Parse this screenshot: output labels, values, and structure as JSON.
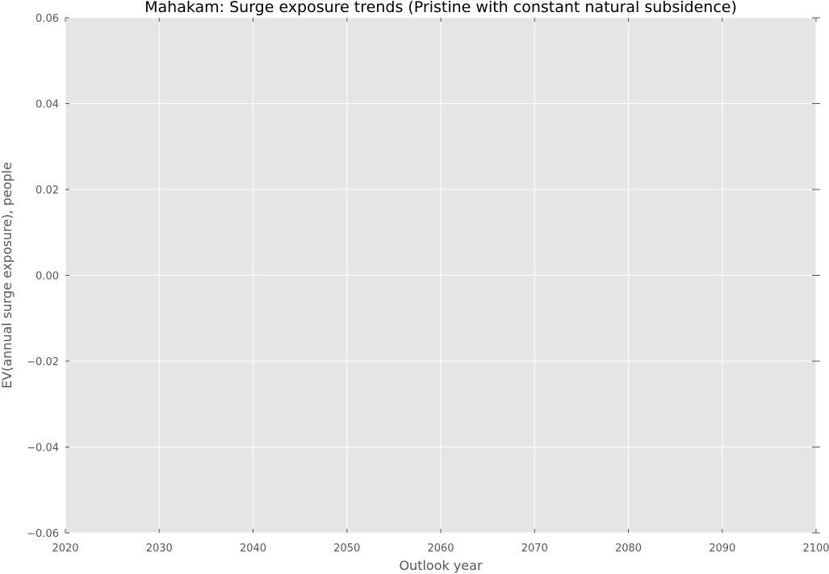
{
  "chart_data": {
    "type": "line",
    "title": "Mahakam: Surge exposure trends (Pristine with constant natural subsidence)",
    "xlabel": "Outlook year",
    "ylabel": "EV(annual surge exposure), people",
    "xlim": [
      2020,
      2100
    ],
    "ylim": [
      -0.06,
      0.06
    ],
    "x_ticks": [
      2020,
      2030,
      2040,
      2050,
      2060,
      2070,
      2080,
      2090,
      2100
    ],
    "y_ticks": [
      -0.06,
      -0.04,
      -0.02,
      0.0,
      0.02,
      0.04,
      0.06
    ],
    "x_tick_labels": [
      "2020",
      "2030",
      "2040",
      "2050",
      "2060",
      "2070",
      "2080",
      "2090",
      "2100"
    ],
    "y_tick_labels": [
      "−0.06",
      "−0.04",
      "−0.02",
      "0.00",
      "0.02",
      "0.04",
      "0.06"
    ],
    "grid": true,
    "series": [],
    "colors": {
      "plot_background": "#e5e5e5",
      "grid": "#ffffff",
      "text": "#555555",
      "title": "#000000"
    }
  }
}
